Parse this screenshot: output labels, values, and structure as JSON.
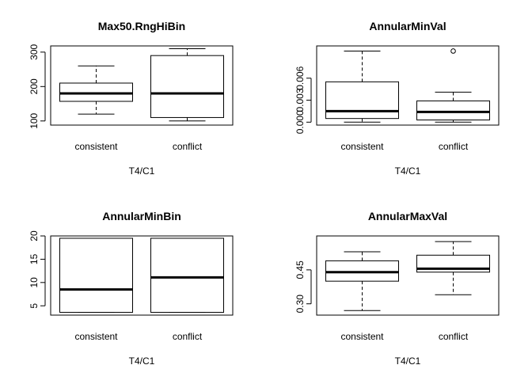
{
  "chart_data": [
    {
      "type": "box",
      "title": "Max50.RngHiBin",
      "xlabel": "T4/C1",
      "ylabel": "",
      "categories": [
        "consistent",
        "conflict"
      ],
      "ylim": [
        88,
        318
      ],
      "yticks": [
        "100",
        "200",
        "300"
      ],
      "boxes": [
        {
          "name": "consistent",
          "whisker_low": 120,
          "q1": 157,
          "median": 180,
          "q3": 210,
          "whisker_high": 260,
          "outliers": []
        },
        {
          "name": "conflict",
          "whisker_low": 100,
          "q1": 110,
          "median": 180,
          "q3": 290,
          "whisker_high": 310,
          "outliers": []
        }
      ]
    },
    {
      "type": "box",
      "title": "AnnularMinVal",
      "xlabel": "T4/C1",
      "ylabel": "",
      "categories": [
        "consistent",
        "conflict"
      ],
      "ylim": [
        -0.0004,
        0.0104
      ],
      "yticks": [
        "0.000",
        "0.003",
        "0.006"
      ],
      "boxes": [
        {
          "name": "consistent",
          "whisker_low": 0.0,
          "q1": 0.0005,
          "median": 0.0015,
          "q3": 0.0055,
          "whisker_high": 0.0097,
          "outliers": []
        },
        {
          "name": "conflict",
          "whisker_low": 0.0,
          "q1": 0.0003,
          "median": 0.0014,
          "q3": 0.0029,
          "whisker_high": 0.0041,
          "outliers": [
            0.0097
          ]
        }
      ]
    },
    {
      "type": "box",
      "title": "AnnularMinBin",
      "xlabel": "T4/C1",
      "ylabel": "",
      "categories": [
        "consistent",
        "conflict"
      ],
      "ylim": [
        3,
        20
      ],
      "yticks": [
        "5",
        "10",
        "15",
        "20"
      ],
      "boxes": [
        {
          "name": "consistent",
          "whisker_low": 3.6,
          "q1": 3.6,
          "median": 8.5,
          "q3": 19.5,
          "whisker_high": 19.5,
          "outliers": []
        },
        {
          "name": "conflict",
          "whisker_low": 3.6,
          "q1": 3.6,
          "median": 11.1,
          "q3": 19.5,
          "whisker_high": 19.5,
          "outliers": []
        }
      ]
    },
    {
      "type": "box",
      "title": "AnnularMaxVal",
      "xlabel": "T4/C1",
      "ylabel": "",
      "categories": [
        "consistent",
        "conflict"
      ],
      "ylim": [
        0.25,
        0.6
      ],
      "yticks": [
        "0.30",
        "0.45"
      ],
      "boxes": [
        {
          "name": "consistent",
          "whisker_low": 0.27,
          "q1": 0.4,
          "median": 0.44,
          "q3": 0.49,
          "whisker_high": 0.53,
          "outliers": []
        },
        {
          "name": "conflict",
          "whisker_low": 0.34,
          "q1": 0.44,
          "median": 0.455,
          "q3": 0.515,
          "whisker_high": 0.575,
          "outliers": []
        }
      ]
    }
  ]
}
